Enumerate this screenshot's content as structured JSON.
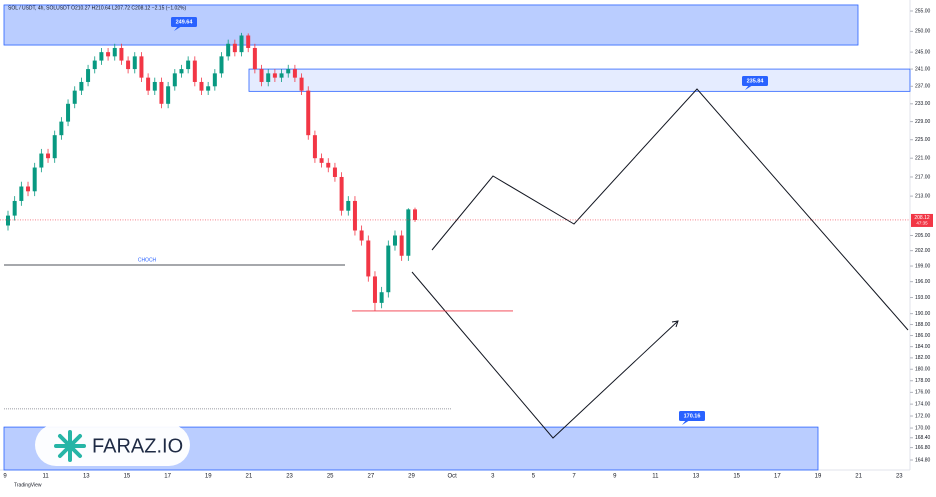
{
  "chart_data": {
    "type": "candlestick",
    "title": "SOL / USDT, 4h, SOLUSDT  O210.27 H210.64 L207.72 C208.12 −2.15 (−1.02%)",
    "source": "TradingView",
    "watermark": "FARAZ.IO",
    "log": true,
    "up_color": "#089981",
    "down_color": "#f23645",
    "categories": [
      "9",
      "11",
      "13",
      "15",
      "17",
      "19",
      "21",
      "23",
      "25",
      "27",
      "29",
      "Oct",
      "3",
      "5",
      "7",
      "9",
      "11",
      "13",
      "15",
      "17",
      "19",
      "21",
      "23"
    ],
    "open": [
      207,
      209,
      212,
      215,
      214,
      219,
      222,
      221,
      226,
      229,
      233,
      236,
      238,
      241,
      243,
      245,
      244,
      246,
      243,
      241,
      244,
      239,
      236,
      238,
      233,
      237,
      240,
      241,
      243,
      238,
      236,
      237,
      240,
      244,
      247,
      245,
      249,
      246,
      241,
      238,
      240,
      239,
      240,
      241,
      239,
      236,
      226,
      221,
      220,
      219,
      217,
      210,
      212,
      206,
      204,
      197,
      192,
      194,
      203,
      205,
      201,
      210.27
    ],
    "high": [
      210,
      213,
      216,
      216,
      220,
      223,
      223,
      227,
      230,
      234,
      237,
      239,
      242,
      244,
      246,
      246,
      247,
      247,
      244,
      245,
      245,
      240,
      239,
      239,
      238,
      241,
      242,
      244,
      244,
      239,
      238,
      241,
      245,
      248,
      248,
      249.64,
      249.5,
      247,
      242,
      241,
      241,
      241,
      242,
      242,
      240,
      237,
      227,
      222,
      221,
      220,
      218,
      213,
      213,
      207,
      205,
      198,
      195,
      204,
      206,
      206,
      210.5,
      210.64
    ],
    "low": [
      206,
      208,
      211,
      213,
      213,
      218,
      220,
      220,
      225,
      228,
      232,
      235,
      237,
      240,
      242,
      243,
      243,
      242,
      240,
      240,
      238,
      235,
      235,
      232,
      232,
      236,
      239,
      240,
      237,
      235,
      235,
      236,
      239,
      243,
      244,
      244,
      245,
      240,
      237,
      237,
      238,
      238,
      239,
      238,
      235,
      225,
      220,
      219,
      218,
      216,
      209,
      209,
      205,
      203,
      196,
      190.5,
      191,
      193,
      202,
      200,
      200,
      207.72
    ],
    "close": [
      209,
      212,
      215,
      214,
      219,
      222,
      221,
      226,
      229,
      233,
      236,
      238,
      241,
      243,
      245,
      244,
      246,
      243,
      241,
      244,
      239,
      236,
      238,
      233,
      237,
      240,
      241,
      243,
      238,
      236,
      237,
      240,
      244,
      247,
      245,
      249,
      246,
      241,
      238,
      240,
      239,
      240,
      241,
      239,
      236,
      226,
      221,
      220,
      219,
      217,
      210,
      212,
      206,
      204,
      197,
      192,
      194,
      203,
      205,
      201,
      210.27,
      208.12
    ],
    "ylim": [
      164.8,
      255
    ],
    "yticks": [
      {
        "value": 255,
        "label": "255.00"
      },
      {
        "value": 250,
        "label": "250.00"
      },
      {
        "value": 245,
        "label": "245.00"
      },
      {
        "value": 241,
        "label": "241.00"
      },
      {
        "value": 237,
        "label": "237.00"
      },
      {
        "value": 233,
        "label": "233.00"
      },
      {
        "value": 229,
        "label": "229.00"
      },
      {
        "value": 225,
        "label": "225.00"
      },
      {
        "value": 221,
        "label": "221.00"
      },
      {
        "value": 217,
        "label": "217.00"
      },
      {
        "value": 213,
        "label": "213.00"
      },
      {
        "value": 205,
        "label": "205.00"
      },
      {
        "value": 202,
        "label": "202.00"
      },
      {
        "value": 199,
        "label": "199.00"
      },
      {
        "value": 196,
        "label": "196.00"
      },
      {
        "value": 193,
        "label": "193.00"
      },
      {
        "value": 190,
        "label": "190.00"
      },
      {
        "value": 188,
        "label": "188.00"
      },
      {
        "value": 186,
        "label": "186.00"
      },
      {
        "value": 184,
        "label": "184.00"
      },
      {
        "value": 182,
        "label": "182.00"
      },
      {
        "value": 180,
        "label": "180.00"
      },
      {
        "value": 178,
        "label": "178.00"
      },
      {
        "value": 176,
        "label": "176.00"
      },
      {
        "value": 174,
        "label": "174.00"
      },
      {
        "value": 172,
        "label": "172.00"
      },
      {
        "value": 170,
        "label": "170.00"
      },
      {
        "value": 168.4,
        "label": "168.40"
      },
      {
        "value": 166.8,
        "label": "166.80"
      },
      {
        "value": 164.8,
        "label": "164.80"
      }
    ],
    "zones": [
      {
        "label": 249.64,
        "top": 256.5,
        "bottom": 246.7
      },
      {
        "label": 235.84,
        "top": 241,
        "bottom": 235.84
      },
      {
        "label": 170.16,
        "top": 170.16,
        "bottom": 163
      }
    ],
    "choch": {
      "label": "CHOCH",
      "value": 199.2
    },
    "low_line": 190.5,
    "dotted_line": 173.2,
    "last_price": 208.12,
    "countdown": "47:35"
  }
}
